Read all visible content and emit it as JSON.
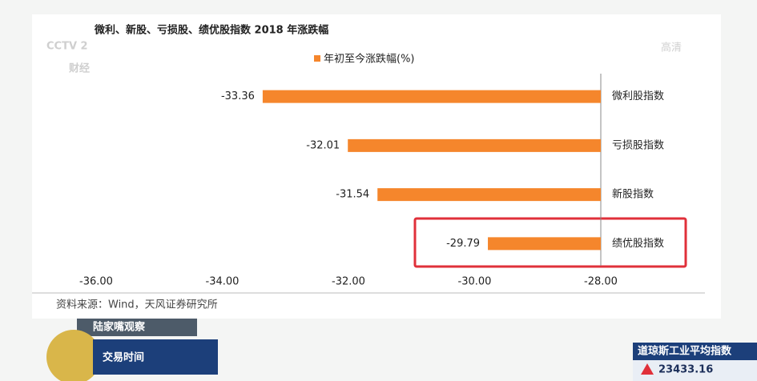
{
  "chart_data": {
    "type": "hbar",
    "title": "微利、新股、亏损股、绩优股指数 2018 年涨跌幅",
    "categories": [
      "微利股指数",
      "亏损股指数",
      "新股指数",
      "绩优股指数"
    ],
    "series": [
      {
        "name": "年初至今涨跌幅(%)",
        "color": "#f5862c",
        "values": [
          -33.36,
          -32.01,
          -31.54,
          -29.79
        ]
      }
    ],
    "xlim": [
      -36,
      -28
    ],
    "xticks": [
      {
        "value": -36,
        "label": "-36.00"
      },
      {
        "value": -34,
        "label": "-34.00"
      },
      {
        "value": -32,
        "label": "-32.00"
      },
      {
        "value": -30,
        "label": "-30.00"
      },
      {
        "value": -28,
        "label": "-28.00"
      }
    ],
    "legend": "top",
    "source": "资料来源：Wind，天风证券研究所"
  },
  "overlay": {
    "logo": "CCTV 2",
    "channel": "财经",
    "hd": "高清",
    "program_sub": "陆家嘴观察",
    "program": "交易时间",
    "ticker_name": "道琼斯工业平均指数",
    "ticker_value": "23433.16"
  }
}
